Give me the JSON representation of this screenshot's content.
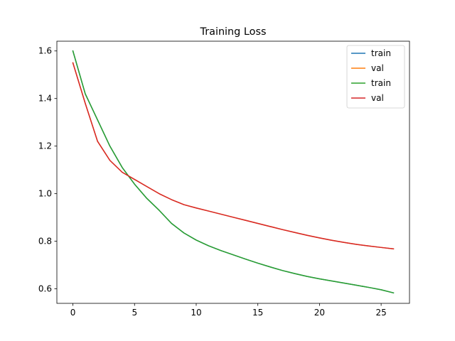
{
  "chart_data": {
    "type": "line",
    "title": "Training Loss",
    "xlabel": "",
    "ylabel": "",
    "xlim": [
      -1.3,
      27.3
    ],
    "ylim": [
      0.539,
      1.641
    ],
    "xticks": [
      0,
      5,
      10,
      15,
      20,
      25
    ],
    "yticks": [
      0.6,
      0.8,
      1.0,
      1.2,
      1.4,
      1.6
    ],
    "grid": false,
    "legend_position": "top-right",
    "x": [
      0,
      1,
      2,
      3,
      4,
      5,
      6,
      7,
      8,
      9,
      10,
      11,
      12,
      13,
      14,
      15,
      16,
      17,
      18,
      19,
      20,
      21,
      22,
      23,
      24,
      25,
      26
    ],
    "series": [
      {
        "name": "train",
        "color": "#1f77b4",
        "values": [
          1.6,
          1.42,
          1.31,
          1.2,
          1.11,
          1.04,
          0.98,
          0.93,
          0.875,
          0.835,
          0.805,
          0.781,
          0.761,
          0.743,
          0.725,
          0.708,
          0.692,
          0.677,
          0.664,
          0.652,
          0.642,
          0.633,
          0.624,
          0.615,
          0.606,
          0.596,
          0.583
        ]
      },
      {
        "name": "val",
        "color": "#ff7f0e",
        "values": [
          1.55,
          1.38,
          1.22,
          1.14,
          1.09,
          1.06,
          1.03,
          1.0,
          0.975,
          0.954,
          0.94,
          0.927,
          0.914,
          0.901,
          0.888,
          0.875,
          0.862,
          0.849,
          0.837,
          0.825,
          0.814,
          0.804,
          0.795,
          0.787,
          0.78,
          0.774,
          0.768
        ]
      },
      {
        "name": "train",
        "color": "#2ca02c",
        "values": [
          1.6,
          1.42,
          1.31,
          1.2,
          1.11,
          1.04,
          0.98,
          0.93,
          0.875,
          0.835,
          0.805,
          0.781,
          0.761,
          0.743,
          0.725,
          0.708,
          0.692,
          0.677,
          0.664,
          0.652,
          0.642,
          0.633,
          0.624,
          0.615,
          0.606,
          0.596,
          0.583
        ]
      },
      {
        "name": "val",
        "color": "#d62728",
        "values": [
          1.55,
          1.38,
          1.22,
          1.14,
          1.09,
          1.06,
          1.03,
          1.0,
          0.975,
          0.954,
          0.94,
          0.927,
          0.914,
          0.901,
          0.888,
          0.875,
          0.862,
          0.849,
          0.837,
          0.825,
          0.814,
          0.804,
          0.795,
          0.787,
          0.78,
          0.774,
          0.768
        ]
      }
    ]
  }
}
